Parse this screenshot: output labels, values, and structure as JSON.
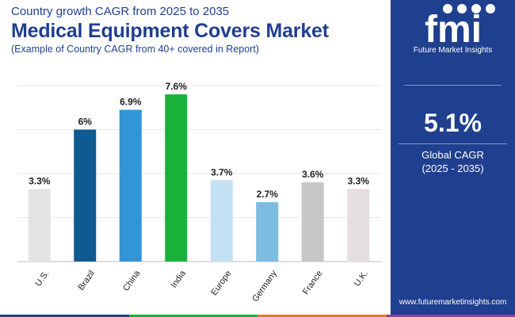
{
  "header": {
    "subtitle": "Country growth CAGR from 2025 to 2035",
    "title": "Medical Equipment Covers Market",
    "note": "(Example of Country CAGR from 40+ covered in Report)"
  },
  "chart_data": {
    "type": "bar",
    "categories": [
      "U.S.",
      "Brazil",
      "China",
      "India",
      "Europe",
      "Germany",
      "France",
      "U.K."
    ],
    "values": [
      3.3,
      6,
      6.9,
      7.6,
      3.7,
      2.7,
      3.6,
      3.3
    ],
    "labels": [
      "3.3%",
      "6%",
      "6.9%",
      "7.6%",
      "3.7%",
      "2.7%",
      "3.6%",
      "3.3%"
    ],
    "colors": [
      "#e3e3e3",
      "#0e5a91",
      "#3195d8",
      "#18b23a",
      "#c4e1f3",
      "#7cbce3",
      "#c7c7c7",
      "#e4dede"
    ],
    "ylim": [
      0,
      8
    ],
    "grid": true,
    "title": "Medical Equipment Covers Market",
    "xlabel": "",
    "ylabel": ""
  },
  "sidebar": {
    "logo_text": "Future Market Insights",
    "cagr_value": "5.1%",
    "cagr_label": "Global CAGR",
    "cagr_range": "(2025 - 2035)",
    "website": "www.futuremarketinsights.com"
  },
  "colors": {
    "brand": "#1f3f8f",
    "bottom_bar": [
      "#1f3f8f",
      "#18b23a",
      "#e87a1e",
      "#8c3da0"
    ]
  }
}
